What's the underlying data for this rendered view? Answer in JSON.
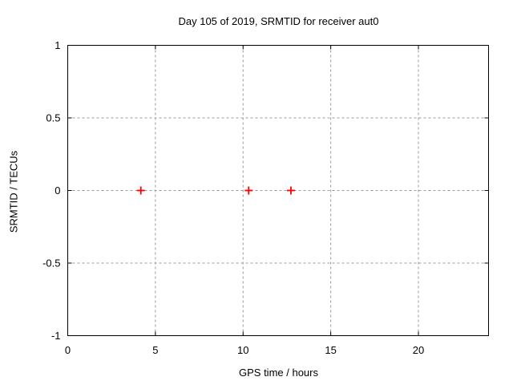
{
  "chart_data": {
    "type": "scatter",
    "title": "Day 105 of 2019, SRMTID for receiver aut0",
    "xlabel": "GPS time / hours",
    "ylabel": "SRMTID / TECUs",
    "xlim": [
      0,
      24
    ],
    "ylim": [
      -1,
      1
    ],
    "xticks": [
      0,
      5,
      10,
      15,
      20
    ],
    "yticks": [
      -1,
      -0.5,
      0,
      0.5,
      1
    ],
    "grid": true,
    "legend": "none",
    "series": [
      {
        "name": "SRMTID",
        "marker": "plus",
        "color": "#ff0000",
        "points": [
          {
            "x": 4.17,
            "y": 0
          },
          {
            "x": 10.32,
            "y": 0
          },
          {
            "x": 12.73,
            "y": 0
          }
        ]
      }
    ]
  },
  "colors": {
    "background": "#ffffff",
    "axis": "#000000",
    "grid": "#9a9a9a",
    "text": "#000000",
    "marker": "#ff0000"
  }
}
